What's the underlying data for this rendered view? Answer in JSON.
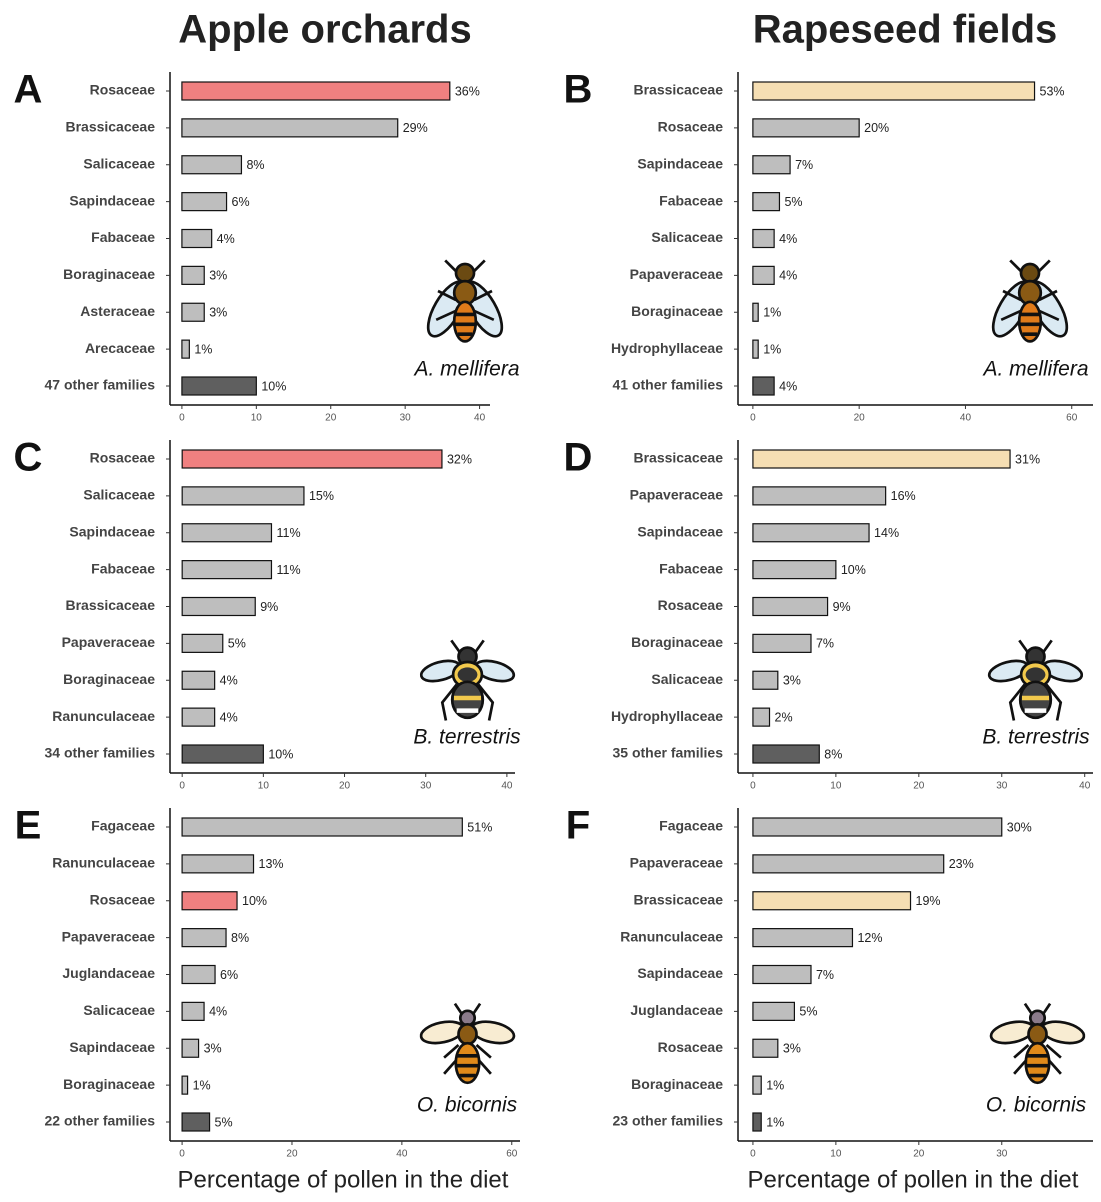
{
  "columns": [
    "Apple orchards",
    "Rapeseed fields"
  ],
  "chart_data": [
    {
      "type": "bar",
      "orientation": "horizontal",
      "panel": "A",
      "species": "A. mellifera",
      "categories": [
        "Rosaceae",
        "Brassicaceae",
        "Salicaceae",
        "Sapindaceae",
        "Fabaceae",
        "Boraginaceae",
        "Asteraceae",
        "Arecaceae",
        "47 other families"
      ],
      "values": [
        36,
        29,
        8,
        6,
        4,
        3,
        3,
        1,
        10
      ],
      "value_labels": [
        "36%",
        "29%",
        "8%",
        "6%",
        "4%",
        "3%",
        "3%",
        "1%",
        "10%"
      ],
      "colors": [
        "#f08080",
        "#bebebe",
        "#bebebe",
        "#bebebe",
        "#bebebe",
        "#bebebe",
        "#bebebe",
        "#bebebe",
        "#5f5f5f"
      ],
      "xlim": [
        -1.6,
        41.4
      ],
      "xticks": [
        0,
        10,
        20,
        30,
        40
      ]
    },
    {
      "type": "bar",
      "orientation": "horizontal",
      "panel": "B",
      "species": "A. mellifera",
      "categories": [
        "Brassicaceae",
        "Rosaceae",
        "Sapindaceae",
        "Fabaceae",
        "Salicaceae",
        "Papaveraceae",
        "Boraginaceae",
        "Hydrophyllaceae",
        "41 other families"
      ],
      "values": [
        53,
        20,
        7,
        5,
        4,
        4,
        1,
        1,
        4
      ],
      "value_labels": [
        "53%",
        "20%",
        "7%",
        "5%",
        "4%",
        "4%",
        "1%",
        "1%",
        "4%"
      ],
      "colors": [
        "#f5deb3",
        "#bebebe",
        "#bebebe",
        "#bebebe",
        "#bebebe",
        "#bebebe",
        "#bebebe",
        "#bebebe",
        "#5f5f5f"
      ],
      "xlim": [
        -2.8,
        64
      ],
      "xticks": [
        0,
        20,
        40,
        60
      ]
    },
    {
      "type": "bar",
      "orientation": "horizontal",
      "panel": "C",
      "species": "B. terrestris",
      "categories": [
        "Rosaceae",
        "Salicaceae",
        "Sapindaceae",
        "Fabaceae",
        "Brassicaceae",
        "Papaveraceae",
        "Boraginaceae",
        "Ranunculaceae",
        "34 other families"
      ],
      "values": [
        32,
        15,
        11,
        11,
        9,
        5,
        4,
        4,
        10
      ],
      "value_labels": [
        "32%",
        "15%",
        "11%",
        "11%",
        "9%",
        "5%",
        "4%",
        "4%",
        "10%"
      ],
      "colors": [
        "#f08080",
        "#bebebe",
        "#bebebe",
        "#bebebe",
        "#bebebe",
        "#bebebe",
        "#bebebe",
        "#bebebe",
        "#5f5f5f"
      ],
      "xlim": [
        -1.5,
        41
      ],
      "xticks": [
        0,
        10,
        20,
        30,
        40
      ]
    },
    {
      "type": "bar",
      "orientation": "horizontal",
      "panel": "D",
      "species": "B. terrestris",
      "categories": [
        "Brassicaceae",
        "Papaveraceae",
        "Sapindaceae",
        "Fabaceae",
        "Rosaceae",
        "Boraginaceae",
        "Salicaceae",
        "Hydrophyllaceae",
        "35 other families"
      ],
      "values": [
        31,
        16,
        14,
        10,
        9,
        7,
        3,
        2,
        8
      ],
      "value_labels": [
        "31%",
        "16%",
        "14%",
        "10%",
        "9%",
        "7%",
        "3%",
        "2%",
        "8%"
      ],
      "colors": [
        "#f5deb3",
        "#bebebe",
        "#bebebe",
        "#bebebe",
        "#bebebe",
        "#bebebe",
        "#bebebe",
        "#bebebe",
        "#5f5f5f"
      ],
      "xlim": [
        -1.8,
        41
      ],
      "xticks": [
        0,
        10,
        20,
        30,
        40
      ]
    },
    {
      "type": "bar",
      "orientation": "horizontal",
      "panel": "E",
      "species": "O. bicornis",
      "categories": [
        "Fagaceae",
        "Ranunculaceae",
        "Rosaceae",
        "Papaveraceae",
        "Juglandaceae",
        "Salicaceae",
        "Sapindaceae",
        "Boraginaceae",
        "22 other families"
      ],
      "values": [
        51,
        13,
        10,
        8,
        6,
        4,
        3,
        1,
        5
      ],
      "value_labels": [
        "51%",
        "13%",
        "10%",
        "8%",
        "6%",
        "4%",
        "3%",
        "1%",
        "5%"
      ],
      "colors": [
        "#bebebe",
        "#bebebe",
        "#f08080",
        "#bebebe",
        "#bebebe",
        "#bebebe",
        "#bebebe",
        "#bebebe",
        "#5f5f5f"
      ],
      "xlim": [
        -2.2,
        61.5
      ],
      "xticks": [
        0,
        20,
        40,
        60
      ],
      "xlabel": "Percentage of pollen in the diet"
    },
    {
      "type": "bar",
      "orientation": "horizontal",
      "panel": "F",
      "species": "O. bicornis",
      "categories": [
        "Fagaceae",
        "Papaveraceae",
        "Brassicaceae",
        "Ranunculaceae",
        "Sapindaceae",
        "Juglandaceae",
        "Rosaceae",
        "Boraginaceae",
        "23 other families"
      ],
      "values": [
        30,
        23,
        19,
        12,
        7,
        5,
        3,
        1,
        1
      ],
      "value_labels": [
        "30%",
        "23%",
        "19%",
        "12%",
        "7%",
        "5%",
        "3%",
        "1%",
        "1%"
      ],
      "colors": [
        "#bebebe",
        "#bebebe",
        "#f5deb3",
        "#bebebe",
        "#bebebe",
        "#bebebe",
        "#bebebe",
        "#bebebe",
        "#5f5f5f"
      ],
      "xlim": [
        -1.8,
        41
      ],
      "xticks": [
        0,
        10,
        20,
        30
      ],
      "xlabel": "Percentage of pollen in the diet"
    }
  ]
}
